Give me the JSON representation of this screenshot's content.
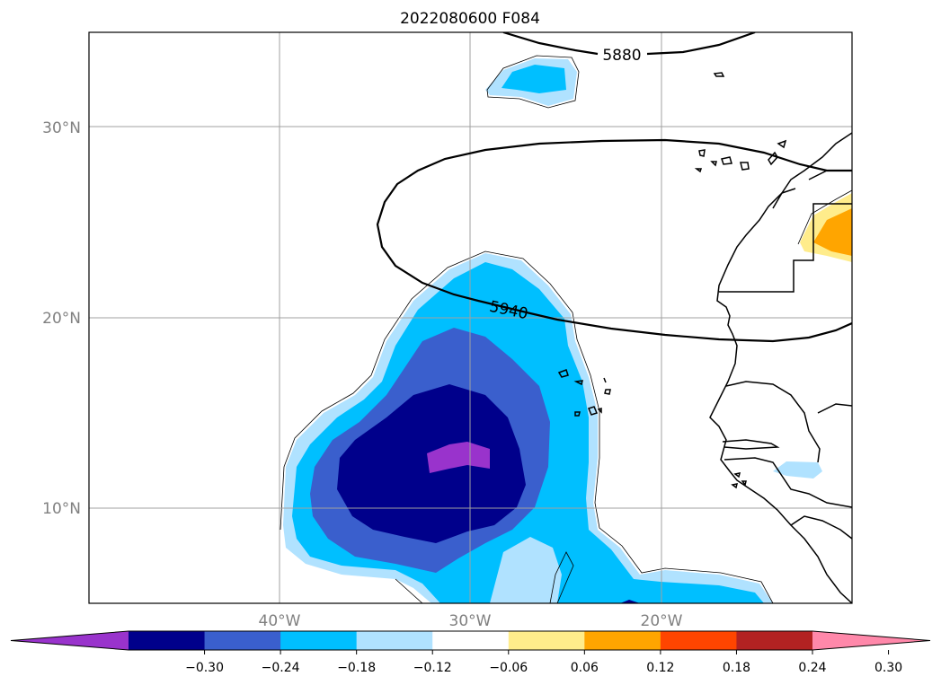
{
  "chart_data": {
    "type": "contour_map",
    "title": "2022080600 F084",
    "lat_ticks": [
      "10°N",
      "20°N",
      "30°N"
    ],
    "lon_ticks": [
      "40°W",
      "30°W",
      "20°W"
    ],
    "grid": true,
    "contour_labels": [
      "5880",
      "5940"
    ],
    "colorbar": {
      "orientation": "horizontal",
      "extend": "both",
      "tick_labels": [
        "−0.30",
        "−0.24",
        "−0.18",
        "−0.12",
        "−0.06",
        "0.06",
        "0.12",
        "0.18",
        "0.24",
        "0.30"
      ],
      "colors": [
        "#9933cc",
        "#00008b",
        "#3a5fcd",
        "#00bfff",
        "#b0e2ff",
        "#ffffff",
        "#ffec8b",
        "#ffa500",
        "#ff4500",
        "#b22222",
        "#ff88aa"
      ]
    }
  }
}
